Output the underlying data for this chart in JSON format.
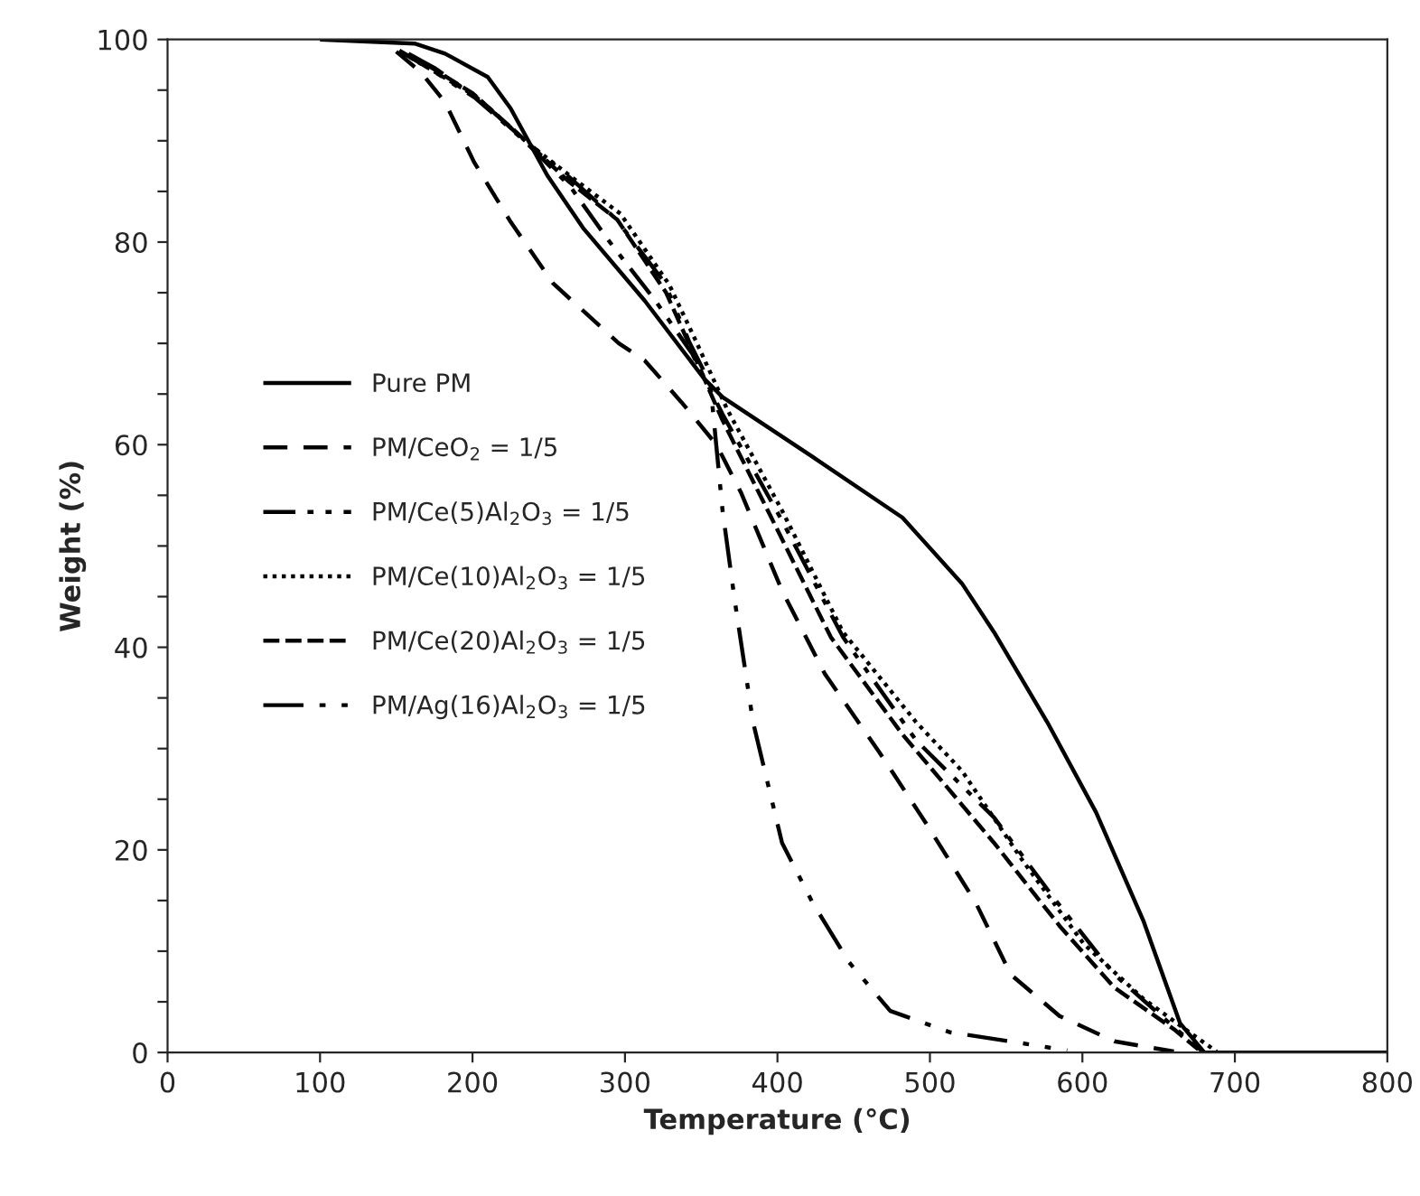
{
  "chart_data": {
    "type": "line",
    "xlabel": "Temperature (°C)",
    "ylabel": "Weight (%)",
    "xlim": [
      0,
      800
    ],
    "ylim": [
      0,
      100
    ],
    "xticks": [
      0,
      100,
      200,
      300,
      400,
      500,
      600,
      700,
      800
    ],
    "yticks": [
      0,
      {
        "value": 5,
        "label": null
      },
      {
        "value": 10,
        "label": null
      },
      {
        "value": 15,
        "label": null
      },
      20,
      {
        "value": 25,
        "label": null
      },
      {
        "value": 30,
        "label": null
      },
      {
        "value": 35,
        "label": null
      },
      40,
      {
        "value": 45,
        "label": null
      },
      {
        "value": 50,
        "label": null
      },
      {
        "value": 55,
        "label": null
      },
      60,
      {
        "value": 65,
        "label": null
      },
      {
        "value": 70,
        "label": null
      },
      {
        "value": 75,
        "label": null
      },
      80,
      {
        "value": 85,
        "label": null
      },
      {
        "value": 90,
        "label": null
      },
      {
        "value": 95,
        "label": null
      },
      100
    ],
    "grid": false,
    "legend": "left",
    "marker": "none",
    "series": [
      {
        "name": "Pure PM",
        "color": "#000000",
        "line_style": "solid",
        "x": [
          100,
          162,
          182,
          210,
          225,
          249,
          273,
          313,
          352,
          364,
          423,
          482,
          521,
          542,
          577,
          609,
          640,
          664,
          680,
          800
        ],
        "values": [
          100,
          99.6,
          98.6,
          96.3,
          93.2,
          86.6,
          81.3,
          74.2,
          66.5,
          64.7,
          58.8,
          52.8,
          46.3,
          41.5,
          32.6,
          23.7,
          13,
          2.9,
          0,
          0
        ]
      },
      {
        "name": "PM/CeO$_{2}$ = 1/5",
        "color": "#000000",
        "line_style": "long dashed",
        "x": [
          150,
          166,
          182,
          201,
          225,
          253,
          296,
          313,
          337,
          360,
          376,
          403,
          431,
          467,
          498,
          530,
          553,
          585,
          621,
          660
        ],
        "values": [
          98.8,
          96.8,
          93.8,
          87.9,
          82,
          75.9,
          70,
          68.3,
          64.2,
          60,
          55.3,
          45.6,
          37.4,
          29.6,
          22.5,
          14.8,
          7.7,
          3.6,
          1.1,
          0.1
        ]
      },
      {
        "name": "PM/Ce(5)Al$_{2}$O$_{3}$ = 1/5",
        "color": "#000000",
        "line_style": "dashdot",
        "x": [
          152,
          172,
          202,
          234,
          264,
          289,
          320,
          344,
          364,
          403,
          443,
          491,
          542,
          581,
          621,
          657,
          678
        ],
        "values": [
          98.9,
          97.1,
          94.2,
          90,
          85.5,
          80.2,
          74.2,
          69,
          63,
          52.5,
          41,
          30.8,
          23.2,
          15.3,
          7.7,
          2.9,
          0.2
        ]
      },
      {
        "name": "PM/Ce(10)Al$_{2}$O$_{3}$ = 1/5",
        "color": "#000000",
        "line_style": "dotted",
        "x": [
          154,
          173,
          203,
          236,
          266,
          297,
          329,
          346,
          367,
          403,
          443,
          491,
          521,
          561,
          601,
          640,
          672,
          688
        ],
        "values": [
          98.7,
          97,
          94.3,
          89.8,
          86.3,
          82.8,
          75.8,
          70.4,
          63.5,
          53.5,
          41.5,
          32.6,
          27.8,
          18.9,
          10.7,
          5.3,
          1.8,
          0.1
        ]
      },
      {
        "name": "PM/Ce(20)Al$_{2}$O$_{3}$ = 1/5",
        "color": "#000000",
        "line_style": "dashed",
        "x": [
          156,
          170,
          200,
          232,
          263,
          295,
          327,
          343,
          364,
          396,
          435,
          482,
          542,
          585,
          621,
          660,
          676
        ],
        "values": [
          98.5,
          97.5,
          94.7,
          90.4,
          86,
          82.2,
          75,
          69.6,
          62.4,
          52.8,
          41,
          31.4,
          20.7,
          12.5,
          6.4,
          2.3,
          0.3
        ]
      },
      {
        "name": "PM/Ag(16)Al$_{2}$O$_{3}$ = 1/5",
        "color": "#000000",
        "line_style": "dashdotdot",
        "x": [
          158,
          175,
          205,
          230,
          262,
          294,
          326,
          342,
          356,
          364,
          372,
          384,
          403,
          423,
          447,
          474,
          513,
          561,
          590
        ],
        "values": [
          98.6,
          97.2,
          94,
          90.6,
          86.6,
          82.3,
          76,
          70.2,
          66,
          53.5,
          44.6,
          32.6,
          20.7,
          14.8,
          8.9,
          4.1,
          2,
          0.9,
          0.2
        ]
      }
    ]
  }
}
